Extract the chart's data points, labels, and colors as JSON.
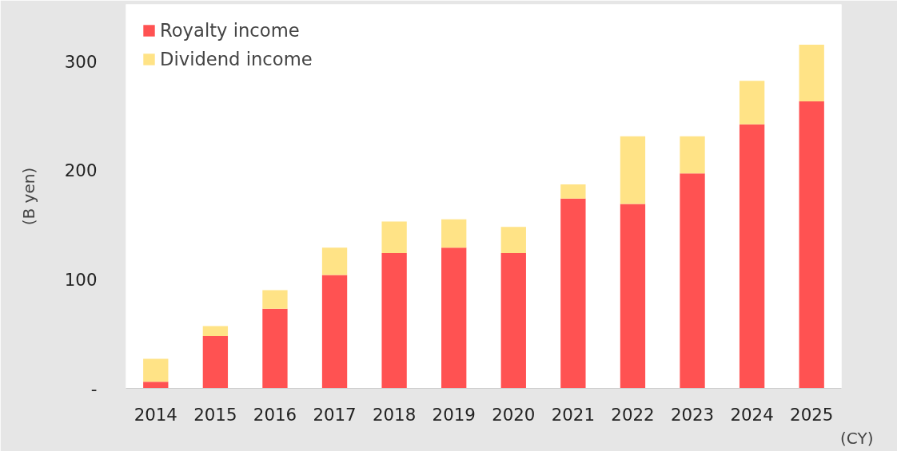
{
  "chart_data": {
    "type": "bar",
    "stacked": true,
    "categories": [
      "2014",
      "2015",
      "2016",
      "2017",
      "2018",
      "2019",
      "2020",
      "2021",
      "2022",
      "2023",
      "2024",
      "2025"
    ],
    "series": [
      {
        "name": "Royalty income",
        "color": "#ff5252",
        "values": [
          6,
          48,
          73,
          104,
          124,
          129,
          124,
          174,
          169,
          197,
          242,
          263
        ]
      },
      {
        "name": "Dividend income",
        "color": "#ffe386",
        "values": [
          21,
          9,
          17,
          25,
          29,
          26,
          24,
          13,
          62,
          34,
          40,
          52
        ]
      }
    ],
    "xlabel": "(CY)",
    "ylabel": "(B yen)",
    "ylim": [
      0,
      352
    ],
    "yticks": [
      {
        "value": 0,
        "label": "-"
      },
      100,
      200,
      300
    ],
    "grid": false,
    "legend": "top left"
  }
}
